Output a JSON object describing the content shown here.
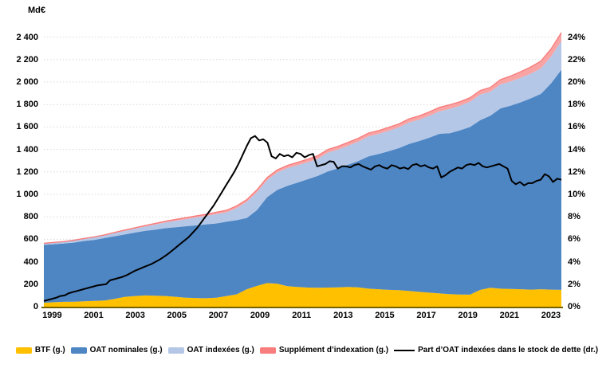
{
  "colors": {
    "btf": "#FFC000",
    "oat_nominales": "#4E86C4",
    "oat_indexees": "#B4C7E7",
    "supplement_fill": "#F9A4A4",
    "supplement_edge": "#F87D7D",
    "line": "#000000",
    "grid": "#D9D9D9",
    "axis_line": "#756200",
    "text": "#000000"
  },
  "axes": {
    "y_left_title": "Md€",
    "y_left_labels": [
      "0",
      "200",
      "400",
      "600",
      "800",
      "1 000",
      "1 200",
      "1 400",
      "1 600",
      "1 800",
      "2 000",
      "2 200",
      "2 400"
    ],
    "y_right_labels": [
      "0%",
      "2%",
      "4%",
      "6%",
      "8%",
      "10%",
      "12%",
      "14%",
      "16%",
      "18%",
      "20%",
      "22%",
      "24%"
    ],
    "x_labels": [
      "1999",
      "2001",
      "2003",
      "2005",
      "2007",
      "2009",
      "2011",
      "2013",
      "2015",
      "2017",
      "2019",
      "2021",
      "2023"
    ]
  },
  "legend": {
    "items": [
      {
        "label": "BTF (g.)",
        "swatch": "area",
        "color": "#FFC000"
      },
      {
        "label": "OAT nominales (g.)",
        "swatch": "area",
        "color": "#4E86C4"
      },
      {
        "label": "OAT indexées (g.)",
        "swatch": "area",
        "color": "#B4C7E7"
      },
      {
        "label": "Supplément d’indexation (g.)",
        "swatch": "area",
        "color": "#F87D7D"
      },
      {
        "label": "Part d’OAT indexées dans le stock de dette (dr.)",
        "swatch": "line",
        "color": "#000000"
      }
    ]
  },
  "chart_data": {
    "type": "area-stacked+line",
    "x_start": 1998.6,
    "x_end": 2023.5,
    "x_tick_years": [
      1999,
      2001,
      2003,
      2005,
      2007,
      2009,
      2011,
      2013,
      2015,
      2017,
      2019,
      2021,
      2023
    ],
    "y_left": {
      "label": "Md€",
      "min": 0,
      "max": 2400,
      "tick_step": 200
    },
    "y_right": {
      "min": 0,
      "max": 24,
      "tick_step": 2,
      "unit": "%"
    },
    "grid": "horizontal-dotted",
    "legend_position": "bottom",
    "series": [
      {
        "name": "BTF (g.)",
        "type": "area",
        "stack": true,
        "axis": "left",
        "color": "#FFC000",
        "values": [
          35,
          40,
          43,
          45,
          48,
          52,
          55,
          70,
          88,
          95,
          100,
          98,
          95,
          88,
          80,
          77,
          75,
          80,
          95,
          110,
          155,
          185,
          210,
          205,
          182,
          175,
          170,
          168,
          170,
          172,
          175,
          172,
          160,
          155,
          150,
          147,
          140,
          132,
          125,
          118,
          112,
          108,
          107,
          150,
          168,
          160,
          158,
          155,
          152,
          155,
          152,
          150
        ]
      },
      {
        "name": "OAT nominales (g.)",
        "type": "area",
        "stack": true,
        "axis": "left",
        "color": "#4E86C4",
        "values": [
          515,
          516,
          520,
          526,
          538,
          543,
          556,
          558,
          556,
          565,
          575,
          588,
          604,
          620,
          636,
          647,
          658,
          661,
          662,
          660,
          635,
          675,
          765,
          835,
          894,
          930,
          965,
          997,
          1035,
          1060,
          1090,
          1126,
          1178,
          1205,
          1235,
          1265,
          1310,
          1343,
          1380,
          1422,
          1433,
          1462,
          1493,
          1510,
          1532,
          1605,
          1632,
          1665,
          1703,
          1740,
          1838,
          1960
        ]
      },
      {
        "name": "OAT indexées (g.)",
        "type": "area",
        "stack": true,
        "axis": "left",
        "color": "#B4C7E7",
        "values": [
          12,
          14,
          14,
          18,
          18,
          23,
          24,
          28,
          32,
          35,
          39,
          46,
          51,
          57,
          63,
          70,
          75,
          84,
          83,
          108,
          143,
          159,
          153,
          155,
          157,
          154,
          151,
          153,
          167,
          167,
          168,
          172,
          178,
          178,
          182,
          185,
          191,
          191,
          196,
          200,
          216,
          218,
          225,
          229,
          214,
          214,
          215,
          218,
          220,
          228,
          239,
          255
        ]
      },
      {
        "name": "Supplément d’indexation (g.)",
        "type": "area",
        "stack": true,
        "axis": "left",
        "color": "#F9A4A4",
        "edge_color": "#F87D7D",
        "values": [
          2,
          2,
          3,
          3,
          4,
          4,
          5,
          6,
          7,
          8,
          9,
          10,
          11,
          12,
          13,
          14,
          15,
          16,
          18,
          19,
          20,
          21,
          22,
          23,
          25,
          26,
          27,
          27,
          28,
          29,
          30,
          30,
          30,
          30,
          30,
          31,
          32,
          33,
          34,
          35,
          36,
          36,
          35,
          36,
          38,
          42,
          48,
          54,
          60,
          64,
          68,
          75
        ]
      },
      {
        "name": "Part d’OAT indexées dans le stock de dette (dr.)",
        "type": "line",
        "axis": "right",
        "color": "#000000",
        "values": [
          0.5,
          0.6,
          0.7,
          0.8,
          0.95,
          1.0,
          1.2,
          1.3,
          1.4,
          1.5,
          1.6,
          1.7,
          1.8,
          1.9,
          1.95,
          2.0,
          2.35,
          2.45,
          2.55,
          2.65,
          2.8,
          3.0,
          3.2,
          3.35,
          3.5,
          3.65,
          3.8,
          4.0,
          4.2,
          4.45,
          4.7,
          5.0,
          5.3,
          5.6,
          5.9,
          6.2,
          6.6,
          7.0,
          7.5,
          8.0,
          8.5,
          9.0,
          9.6,
          10.2,
          10.8,
          11.4,
          12.0,
          12.7,
          13.5,
          14.3,
          15.0,
          15.2,
          14.8,
          14.9,
          14.6,
          13.4,
          13.2,
          13.6,
          13.4,
          13.5,
          13.3,
          13.7,
          13.6,
          13.3,
          13.5,
          13.6,
          12.5,
          12.6,
          12.7,
          12.95,
          12.9,
          12.3,
          12.5,
          12.5,
          12.4,
          12.6,
          12.7,
          12.5,
          12.35,
          12.2,
          12.5,
          12.6,
          12.4,
          12.3,
          12.6,
          12.5,
          12.3,
          12.4,
          12.25,
          12.6,
          12.7,
          12.5,
          12.6,
          12.4,
          12.3,
          12.5,
          11.5,
          11.7,
          12.0,
          12.2,
          12.4,
          12.3,
          12.6,
          12.7,
          12.6,
          12.8,
          12.5,
          12.4,
          12.5,
          12.6,
          12.7,
          12.5,
          12.3,
          11.2,
          10.9,
          11.1,
          10.8,
          11.0,
          11.0,
          11.2,
          11.3,
          11.8,
          11.6,
          11.1,
          11.4,
          11.3
        ]
      }
    ]
  }
}
